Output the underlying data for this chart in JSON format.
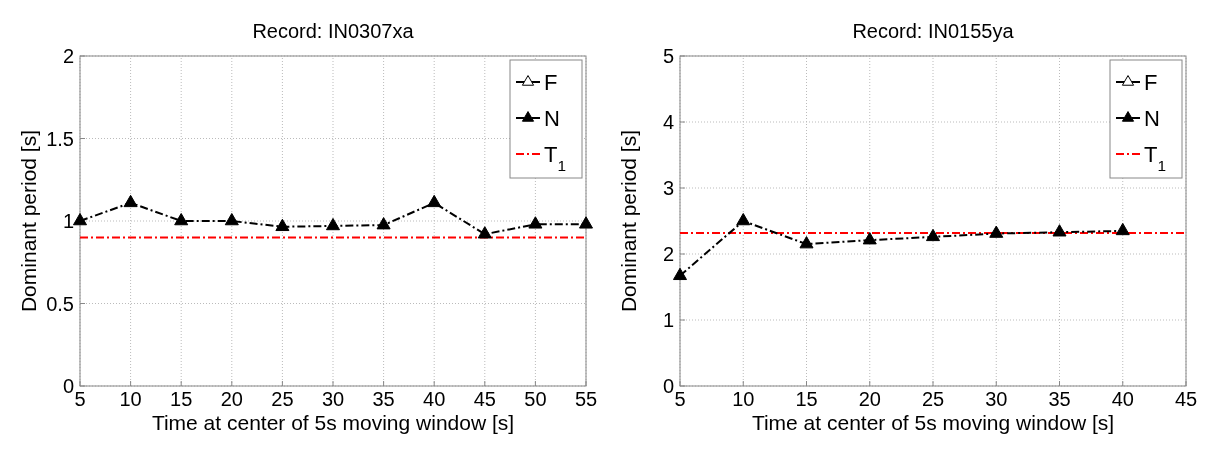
{
  "chart_data": [
    {
      "type": "line",
      "title": "Record: IN0307xa",
      "xlabel": "Time at center of 5s moving window [s]",
      "ylabel": "Dominant period [s]",
      "x": [
        5,
        10,
        15,
        20,
        25,
        30,
        35,
        40,
        45,
        50,
        55
      ],
      "series": [
        {
          "name": "F",
          "color": "#000000",
          "marker": "triangle",
          "line_style": "dashed",
          "values": [
            null,
            null,
            null,
            null,
            null,
            null,
            null,
            null,
            null,
            null,
            null
          ]
        },
        {
          "name": "N",
          "color": "#000000",
          "marker": "triangle",
          "line_style": "dashed",
          "values": [
            1.0,
            1.11,
            1.0,
            1.0,
            0.965,
            0.97,
            0.975,
            1.11,
            0.92,
            0.98,
            0.98
          ]
        }
      ],
      "ref_lines": [
        {
          "axis": "y",
          "value": 0.9,
          "label": "T$_{1}$",
          "color": "#ff0000",
          "line_style": "dashed"
        }
      ],
      "xlim": [
        5,
        55
      ],
      "xticks": [
        5,
        10,
        15,
        20,
        25,
        30,
        35,
        40,
        45,
        50,
        55
      ],
      "ylim": [
        0,
        2
      ],
      "yticks": [
        0,
        0.5,
        1,
        1.5,
        2
      ],
      "grid": true,
      "legend": "top right"
    },
    {
      "type": "line",
      "title": "Record: IN0155ya",
      "xlabel": "Time at center of 5s moving window [s]",
      "ylabel": "Dominant period [s]",
      "x": [
        5,
        10,
        15,
        20,
        25,
        30,
        35,
        40
      ],
      "series": [
        {
          "name": "F",
          "color": "#000000",
          "marker": "triangle",
          "line_style": "dashed",
          "values": [
            null,
            null,
            null,
            null,
            null,
            null,
            null,
            null
          ]
        },
        {
          "name": "N",
          "color": "#000000",
          "marker": "triangle",
          "line_style": "dashed",
          "values": [
            1.67,
            2.5,
            2.15,
            2.21,
            2.26,
            2.31,
            2.33,
            2.35
          ]
        }
      ],
      "ref_lines": [
        {
          "axis": "y",
          "value": 2.32,
          "label": "T$_{1}$",
          "color": "#ff0000",
          "line_style": "dashed"
        }
      ],
      "xlim": [
        5,
        45
      ],
      "xticks": [
        5,
        10,
        15,
        20,
        25,
        30,
        35,
        40,
        45
      ],
      "ylim": [
        0,
        5
      ],
      "yticks": [
        0,
        1,
        2,
        3,
        4,
        5
      ],
      "grid": true,
      "legend": "top right"
    }
  ]
}
